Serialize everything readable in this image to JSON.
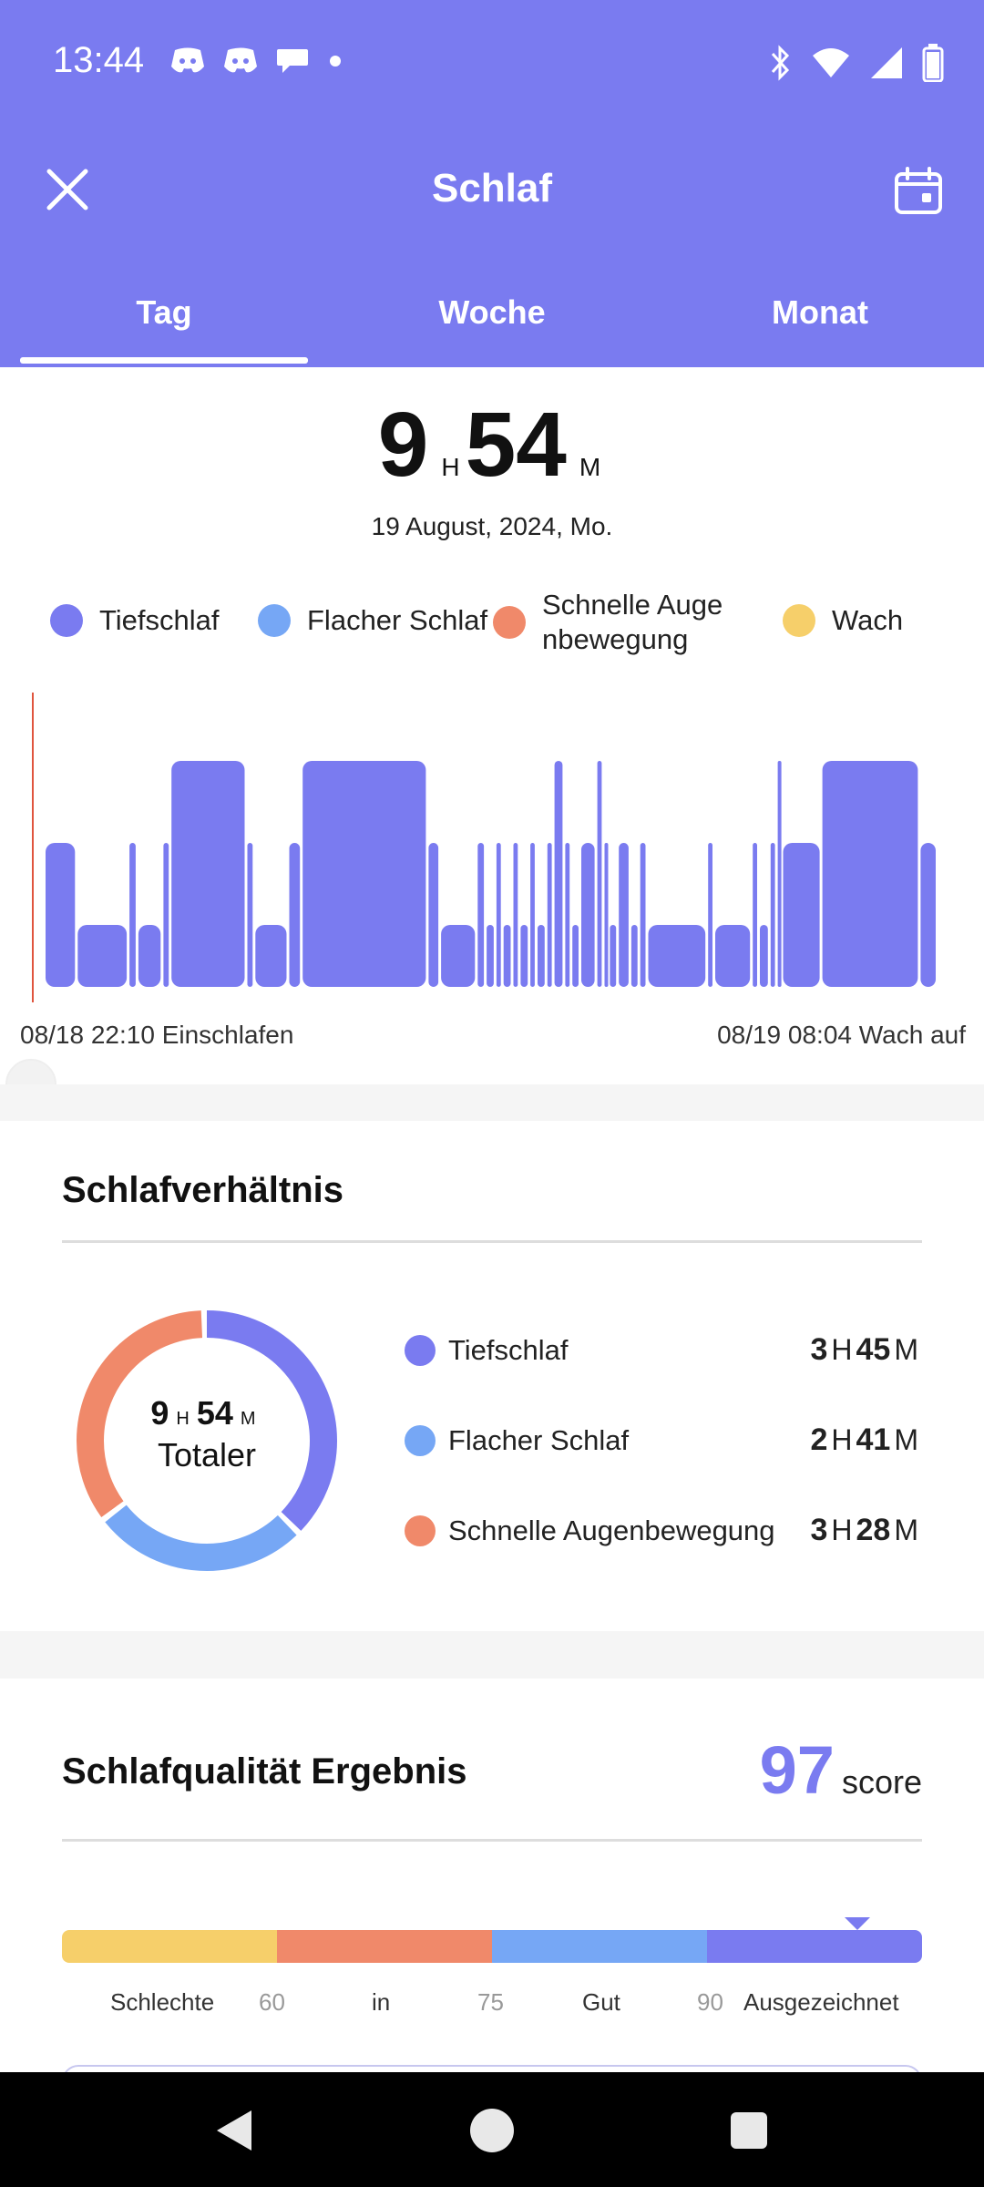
{
  "status_bar": {
    "time": "13:44",
    "notification_icons": [
      "discord-icon",
      "discord-icon",
      "chat-bubble-icon",
      "dot-icon"
    ],
    "system_icons": [
      "bluetooth-icon",
      "wifi-icon",
      "cellular-icon",
      "battery-icon"
    ]
  },
  "header": {
    "title": "Schlaf",
    "close_icon": "close-icon",
    "calendar_icon": "calendar-icon",
    "tabs": [
      {
        "label": "Tag",
        "active": true
      },
      {
        "label": "Woche",
        "active": false
      },
      {
        "label": "Monat",
        "active": false
      }
    ]
  },
  "summary": {
    "hours": "9",
    "hours_unit": "H",
    "minutes": "54",
    "minutes_unit": "M",
    "date": "19 August, 2024, Mo."
  },
  "legend": [
    {
      "label": "Tiefschlaf",
      "color": "#7a7bf0"
    },
    {
      "label": "Flacher Schlaf",
      "color": "#76a7f5"
    },
    {
      "label": "Schnelle Auge nbewegung",
      "color": "#f0896a"
    },
    {
      "label": "Wach",
      "color": "#f6cf6a"
    }
  ],
  "chart": {
    "start_label": "08/18 22:10 Einschlafen",
    "end_label": "08/19 08:04 Wach auf",
    "levels": [
      "Tiefschlaf",
      "Flacher Schlaf",
      "Schnelle Augenbewegung"
    ],
    "segments": [
      {
        "stage": "Flacher Schlaf",
        "from": 0,
        "to": 3.6
      },
      {
        "stage": "Tiefschlaf",
        "from": 3.6,
        "to": 9.4
      },
      {
        "stage": "Flacher Schlaf",
        "from": 9.4,
        "to": 10.4
      },
      {
        "stage": "Tiefschlaf",
        "from": 10.4,
        "to": 13.2
      },
      {
        "stage": "Flacher Schlaf",
        "from": 13.2,
        "to": 14.1
      },
      {
        "stage": "Schnelle Augenbewegung",
        "from": 14.1,
        "to": 22.6
      },
      {
        "stage": "Flacher Schlaf",
        "from": 22.6,
        "to": 23.5
      },
      {
        "stage": "Tiefschlaf",
        "from": 23.5,
        "to": 27.3
      },
      {
        "stage": "Flacher Schlaf",
        "from": 27.3,
        "to": 28.8
      },
      {
        "stage": "Schnelle Augenbewegung",
        "from": 28.8,
        "to": 42.9
      },
      {
        "stage": "Flacher Schlaf",
        "from": 42.9,
        "to": 44.3
      },
      {
        "stage": "Tiefschlaf",
        "from": 44.3,
        "to": 48.4
      },
      {
        "stage": "Flacher Schlaf",
        "from": 48.4,
        "to": 49.4
      },
      {
        "stage": "Tiefschlaf",
        "from": 49.4,
        "to": 50.5
      },
      {
        "stage": "Flacher Schlaf",
        "from": 50.5,
        "to": 51.3
      },
      {
        "stage": "Tiefschlaf",
        "from": 51.3,
        "to": 52.4
      },
      {
        "stage": "Flacher Schlaf",
        "from": 52.4,
        "to": 53.2
      },
      {
        "stage": "Tiefschlaf",
        "from": 53.2,
        "to": 54.3
      },
      {
        "stage": "Flacher Schlaf",
        "from": 54.3,
        "to": 55.1
      },
      {
        "stage": "Tiefschlaf",
        "from": 55.1,
        "to": 56.2
      },
      {
        "stage": "Flacher Schlaf",
        "from": 56.2,
        "to": 57.0
      },
      {
        "stage": "Schnelle Augenbewegung",
        "from": 57.0,
        "to": 58.2
      },
      {
        "stage": "Flacher Schlaf",
        "from": 58.2,
        "to": 59.0
      },
      {
        "stage": "Tiefschlaf",
        "from": 59.0,
        "to": 60.0
      },
      {
        "stage": "Flacher Schlaf",
        "from": 60.0,
        "to": 61.8
      },
      {
        "stage": "Schnelle Augenbewegung",
        "from": 61.8,
        "to": 62.6
      },
      {
        "stage": "Flacher Schlaf",
        "from": 62.6,
        "to": 63.2
      },
      {
        "stage": "Tiefschlaf",
        "from": 63.2,
        "to": 64.2
      },
      {
        "stage": "Flacher Schlaf",
        "from": 64.2,
        "to": 65.6
      },
      {
        "stage": "Tiefschlaf",
        "from": 65.6,
        "to": 66.6
      },
      {
        "stage": "Flacher Schlaf",
        "from": 66.6,
        "to": 67.5
      },
      {
        "stage": "Tiefschlaf",
        "from": 67.5,
        "to": 74.2
      },
      {
        "stage": "Flacher Schlaf",
        "from": 74.2,
        "to": 75.0
      },
      {
        "stage": "Tiefschlaf",
        "from": 75.0,
        "to": 79.2
      },
      {
        "stage": "Flacher Schlaf",
        "from": 79.2,
        "to": 80.0
      },
      {
        "stage": "Tiefschlaf",
        "from": 80.0,
        "to": 81.2
      },
      {
        "stage": "Flacher Schlaf",
        "from": 81.2,
        "to": 82.0
      },
      {
        "stage": "Schnelle Augenbewegung",
        "from": 82.0,
        "to": 82.6
      },
      {
        "stage": "Flacher Schlaf",
        "from": 82.6,
        "to": 87.0
      },
      {
        "stage": "Schnelle Augenbewegung",
        "from": 87.0,
        "to": 98.0
      },
      {
        "stage": "Flacher Schlaf",
        "from": 98.0,
        "to": 100.0
      }
    ]
  },
  "ratio": {
    "title": "Schlafverhältnis",
    "total_hours": "9",
    "total_minutes": "54",
    "unit_h": "H",
    "unit_m": "M",
    "total_label": "Totaler",
    "items": [
      {
        "label": "Tiefschlaf",
        "hours": "3",
        "minutes": "45",
        "color": "#7a7bf0",
        "minutes_total": 225
      },
      {
        "label": "Flacher Schlaf",
        "hours": "2",
        "minutes": "41",
        "color": "#76a7f5",
        "minutes_total": 161
      },
      {
        "label": "Schnelle Augenbewegung",
        "hours": "3",
        "minutes": "28",
        "color": "#f0896a",
        "minutes_total": 208
      }
    ]
  },
  "quality": {
    "title": "Schlafqualität Ergebnis",
    "score": "97",
    "score_label": "score",
    "score_value": 97,
    "bar_colors": [
      "#f6cf6a",
      "#f0896a",
      "#76a7f5",
      "#7a7bf0"
    ],
    "labels": [
      "Schlechte",
      "in",
      "Gut",
      "Ausgezeichnet"
    ],
    "thresholds": [
      "60",
      "75",
      "90"
    ]
  },
  "navbar": {
    "icons": [
      "back-icon",
      "home-icon",
      "recents-icon"
    ]
  }
}
